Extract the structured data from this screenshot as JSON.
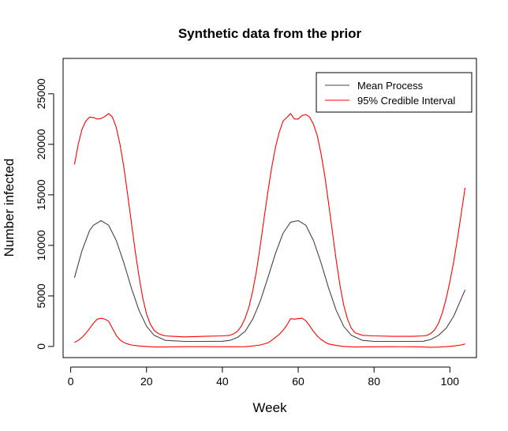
{
  "chart_data": {
    "type": "line",
    "title": "Synthetic data from the prior",
    "xlabel": "Week",
    "ylabel": "Number infected",
    "xlim": [
      -2,
      107
    ],
    "ylim": [
      -1100,
      28500
    ],
    "x_ticks": [
      0,
      20,
      40,
      60,
      80,
      100
    ],
    "y_ticks": [
      0,
      5000,
      10000,
      15000,
      20000,
      25000
    ],
    "legend": {
      "placement": "top-right",
      "entries": [
        {
          "label": "Mean Process",
          "color": "#444444"
        },
        {
          "label": "95% Credible Interval",
          "color": "#ff0000"
        }
      ]
    },
    "series": [
      {
        "name": "Mean Process",
        "color": "#444444",
        "x": [
          1,
          3,
          5,
          6,
          8,
          10,
          12,
          14,
          16,
          18,
          20,
          22,
          25,
          30,
          35,
          40,
          42,
          44,
          46,
          48,
          50,
          52,
          54,
          56,
          58,
          60,
          62,
          64,
          66,
          68,
          70,
          72,
          74,
          77,
          80,
          85,
          90,
          93,
          95,
          97,
          99,
          101,
          104
        ],
        "y": [
          6800,
          9500,
          11500,
          12000,
          12450,
          12000,
          10500,
          8300,
          5800,
          3600,
          2000,
          1100,
          600,
          500,
          500,
          520,
          600,
          900,
          1500,
          2700,
          4500,
          6800,
          9200,
          11200,
          12300,
          12450,
          12000,
          10500,
          8300,
          5800,
          3600,
          2000,
          1100,
          600,
          500,
          500,
          500,
          520,
          700,
          1100,
          1800,
          3000,
          5600
        ]
      },
      {
        "name": "95% Credible Interval",
        "color": "#ff0000",
        "x": [
          1,
          2,
          3,
          4,
          5,
          6,
          7,
          8,
          9,
          10,
          11,
          12,
          13,
          14,
          15,
          16,
          17,
          18,
          19,
          20,
          21,
          22,
          23,
          24,
          25,
          27,
          30,
          35,
          40,
          42,
          43,
          44,
          45,
          46,
          47,
          48,
          49,
          50,
          51,
          52,
          53,
          54,
          55,
          56,
          57,
          58,
          59,
          60,
          61,
          62,
          63,
          64,
          65,
          66,
          67,
          68,
          69,
          70,
          71,
          72,
          73,
          74,
          75,
          77,
          80,
          85,
          90,
          93,
          94,
          95,
          96,
          97,
          98,
          99,
          100,
          101,
          102,
          103,
          104
        ],
        "y": [
          18000,
          20000,
          21500,
          22300,
          22700,
          22650,
          22500,
          22550,
          22750,
          23050,
          22700,
          21700,
          20000,
          17800,
          15100,
          12300,
          9500,
          7000,
          4800,
          3200,
          2200,
          1600,
          1300,
          1150,
          1050,
          1000,
          950,
          1000,
          1050,
          1100,
          1250,
          1500,
          2000,
          2800,
          3900,
          5500,
          7500,
          10000,
          12700,
          15300,
          17700,
          19700,
          21200,
          22300,
          22650,
          23050,
          22500,
          22500,
          22850,
          22950,
          22700,
          22000,
          20900,
          19100,
          16900,
          14200,
          11400,
          8600,
          6100,
          4100,
          2700,
          1800,
          1350,
          1100,
          1050,
          1000,
          1000,
          1050,
          1100,
          1300,
          1650,
          2300,
          3300,
          4700,
          6400,
          8400,
          10700,
          13200,
          15700
        ]
      },
      {
        "name": "95% Credible Interval",
        "color": "#ff0000",
        "x": [
          1,
          2,
          3,
          4,
          5,
          6,
          7,
          8,
          9,
          10,
          11,
          12,
          13,
          14,
          15,
          16,
          18,
          20,
          22,
          25,
          30,
          35,
          40,
          42,
          44,
          46,
          48,
          50,
          52,
          53,
          54,
          55,
          56,
          57,
          58,
          59,
          60,
          61,
          62,
          63,
          64,
          65,
          66,
          67,
          68,
          70,
          72,
          75,
          80,
          85,
          90,
          93,
          95,
          97,
          99,
          101,
          103,
          104
        ],
        "y": [
          400,
          600,
          900,
          1300,
          1800,
          2300,
          2700,
          2800,
          2700,
          2500,
          1800,
          1100,
          650,
          400,
          250,
          150,
          50,
          0,
          -50,
          -50,
          -20,
          -20,
          -20,
          -30,
          -30,
          -20,
          50,
          150,
          350,
          600,
          900,
          1200,
          1600,
          2100,
          2750,
          2700,
          2750,
          2800,
          2550,
          2050,
          1500,
          1050,
          700,
          450,
          250,
          100,
          0,
          -50,
          -30,
          -20,
          -30,
          -50,
          -80,
          -60,
          -20,
          50,
          150,
          250
        ]
      }
    ]
  }
}
